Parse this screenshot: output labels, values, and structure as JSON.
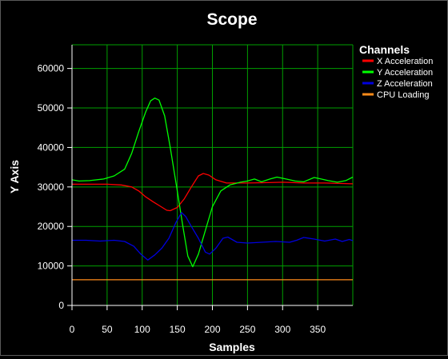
{
  "chart_data": {
    "type": "line",
    "title": "Scope",
    "xlabel": "Samples",
    "ylabel": "Y Axis",
    "xlim": [
      0,
      400
    ],
    "ylim": [
      0,
      66000
    ],
    "x_ticks": [
      0,
      50,
      100,
      150,
      200,
      250,
      300,
      350
    ],
    "y_ticks": [
      0,
      10000,
      20000,
      30000,
      40000,
      50000,
      60000
    ],
    "x_gridlines": [
      0,
      50,
      100,
      150,
      200,
      250,
      300,
      350,
      400
    ],
    "y_gridlines": [
      0,
      10000,
      20000,
      30000,
      40000,
      50000,
      60000,
      66000
    ],
    "grid": true,
    "grid_color": "#00a000",
    "background": "#000000",
    "legend": {
      "title": "Channels",
      "position": "right",
      "entries": [
        "X Acceleration",
        "Y Acceleration",
        "Z Acceleration",
        "CPU Loading"
      ]
    },
    "series": [
      {
        "name": "X Acceleration",
        "color": "#ff0000",
        "points": [
          [
            0,
            30700
          ],
          [
            30,
            30700
          ],
          [
            50,
            30700
          ],
          [
            70,
            30500
          ],
          [
            85,
            30000
          ],
          [
            95,
            29000
          ],
          [
            105,
            27500
          ],
          [
            115,
            26300
          ],
          [
            125,
            25200
          ],
          [
            135,
            24100
          ],
          [
            140,
            24000
          ],
          [
            150,
            24800
          ],
          [
            160,
            27000
          ],
          [
            170,
            30000
          ],
          [
            180,
            32800
          ],
          [
            187,
            33400
          ],
          [
            195,
            33000
          ],
          [
            205,
            31800
          ],
          [
            220,
            31000
          ],
          [
            250,
            31000
          ],
          [
            280,
            31100
          ],
          [
            300,
            31200
          ],
          [
            330,
            31000
          ],
          [
            360,
            31000
          ],
          [
            400,
            30800
          ]
        ]
      },
      {
        "name": "Y Acceleration",
        "color": "#00ff00",
        "points": [
          [
            0,
            31800
          ],
          [
            10,
            31500
          ],
          [
            25,
            31600
          ],
          [
            45,
            32000
          ],
          [
            60,
            32800
          ],
          [
            75,
            34500
          ],
          [
            85,
            38500
          ],
          [
            95,
            44000
          ],
          [
            105,
            49000
          ],
          [
            112,
            51800
          ],
          [
            118,
            52500
          ],
          [
            124,
            52000
          ],
          [
            132,
            48000
          ],
          [
            140,
            40000
          ],
          [
            150,
            29000
          ],
          [
            158,
            20000
          ],
          [
            165,
            12500
          ],
          [
            172,
            9800
          ],
          [
            180,
            13000
          ],
          [
            190,
            19000
          ],
          [
            200,
            25000
          ],
          [
            212,
            29000
          ],
          [
            225,
            30500
          ],
          [
            240,
            31200
          ],
          [
            250,
            31500
          ],
          [
            260,
            32000
          ],
          [
            270,
            31300
          ],
          [
            282,
            32000
          ],
          [
            292,
            32500
          ],
          [
            305,
            32000
          ],
          [
            318,
            31500
          ],
          [
            330,
            31300
          ],
          [
            345,
            32400
          ],
          [
            355,
            32000
          ],
          [
            365,
            31600
          ],
          [
            378,
            31200
          ],
          [
            390,
            31600
          ],
          [
            400,
            32500
          ]
        ]
      },
      {
        "name": "Z Acceleration",
        "color": "#0000dd",
        "points": [
          [
            0,
            16500
          ],
          [
            20,
            16500
          ],
          [
            40,
            16300
          ],
          [
            60,
            16500
          ],
          [
            75,
            16200
          ],
          [
            88,
            15000
          ],
          [
            98,
            13000
          ],
          [
            108,
            11500
          ],
          [
            118,
            12800
          ],
          [
            128,
            14500
          ],
          [
            138,
            17000
          ],
          [
            148,
            21000
          ],
          [
            156,
            23500
          ],
          [
            162,
            22500
          ],
          [
            170,
            20000
          ],
          [
            180,
            17000
          ],
          [
            190,
            13500
          ],
          [
            196,
            13000
          ],
          [
            205,
            14500
          ],
          [
            215,
            17000
          ],
          [
            222,
            17300
          ],
          [
            235,
            16000
          ],
          [
            250,
            15800
          ],
          [
            270,
            16000
          ],
          [
            290,
            16200
          ],
          [
            310,
            16000
          ],
          [
            320,
            16500
          ],
          [
            330,
            17200
          ],
          [
            345,
            16800
          ],
          [
            360,
            16300
          ],
          [
            375,
            16800
          ],
          [
            385,
            16200
          ],
          [
            395,
            16700
          ],
          [
            400,
            16400
          ]
        ]
      },
      {
        "name": "CPU Loading",
        "color": "#ff8c1a",
        "points": [
          [
            0,
            6500
          ],
          [
            400,
            6500
          ]
        ]
      }
    ]
  }
}
